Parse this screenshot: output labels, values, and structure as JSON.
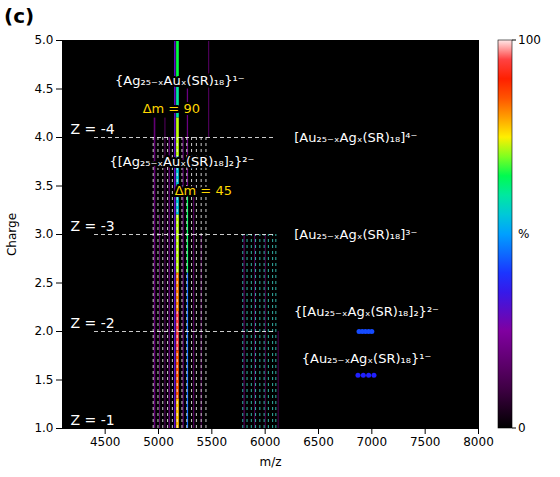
{
  "chart_data": {
    "type": "heatmap",
    "title": "(c)",
    "x_label": "m/z",
    "y_label": "Charge",
    "xlim": [
      4100,
      8000
    ],
    "xticks": [
      4500,
      5000,
      5500,
      6000,
      6500,
      7000,
      7500,
      8000
    ],
    "ylim": [
      1.0,
      5.0
    ],
    "yticks": [
      {
        "value": 1.0,
        "label": "1.0"
      },
      {
        "value": 1.5,
        "label": "1.5"
      },
      {
        "value": 2.0,
        "label": "2.0"
      },
      {
        "value": 2.5,
        "label": "2.5"
      },
      {
        "value": 3.0,
        "label": "3.0"
      },
      {
        "value": 3.5,
        "label": "3.5"
      },
      {
        "value": 4.0,
        "label": "4.0"
      },
      {
        "value": 4.5,
        "label": "4.5"
      },
      {
        "value": 5.0,
        "label": "5.0"
      }
    ],
    "colorbar": {
      "label": "%",
      "range": [
        0,
        100
      ],
      "ticks": [
        0,
        100
      ]
    },
    "cells": [
      {
        "mz": [
          5170,
          5195
        ],
        "charge": [
          4.6,
          5.0
        ],
        "value": 66
      },
      {
        "mz": [
          5170,
          5195
        ],
        "charge": [
          4.2,
          4.6
        ],
        "value": 60
      },
      {
        "mz": [
          5170,
          5195
        ],
        "charge": [
          3.8,
          4.2
        ],
        "value": 72
      },
      {
        "mz": [
          5170,
          5195
        ],
        "charge": [
          3.2,
          3.8
        ],
        "value": 55
      },
      {
        "mz": [
          5170,
          5195
        ],
        "charge": [
          2.6,
          3.2
        ],
        "value": 72
      },
      {
        "mz": [
          5170,
          5195
        ],
        "charge": [
          2.2,
          2.6
        ],
        "value": 82
      },
      {
        "mz": [
          5170,
          5195
        ],
        "charge": [
          1.8,
          2.2
        ],
        "value": 95
      },
      {
        "mz": [
          5170,
          5195
        ],
        "charge": [
          1.3,
          1.8
        ],
        "value": 85
      },
      {
        "mz": [
          5170,
          5195
        ],
        "charge": [
          1.0,
          1.3
        ],
        "value": 78
      },
      {
        "mz": [
          5150,
          5165
        ],
        "charge": [
          1.0,
          5.0
        ],
        "value": 30
      },
      {
        "mz": [
          5270,
          5282
        ],
        "charge": [
          2.6,
          3.4
        ],
        "value": 64
      },
      {
        "mz": [
          5270,
          5282
        ],
        "charge": [
          1.0,
          2.6
        ],
        "value": 45
      },
      {
        "mz": [
          5270,
          5282
        ],
        "charge": [
          3.4,
          4.5
        ],
        "value": 20
      },
      {
        "mz": [
          4960,
          4975
        ],
        "charge": [
          1.0,
          4.2
        ],
        "value": 18
      },
      {
        "mz": [
          5010,
          5020
        ],
        "charge": [
          1.0,
          3.2
        ],
        "value": 15
      },
      {
        "mz": [
          5060,
          5070
        ],
        "charge": [
          1.0,
          4.2
        ],
        "value": 14
      },
      {
        "mz": [
          5100,
          5110
        ],
        "charge": [
          1.0,
          4.0
        ],
        "value": 22
      },
      {
        "mz": [
          5230,
          5240
        ],
        "charge": [
          1.0,
          4.0
        ],
        "value": 20
      },
      {
        "mz": [
          5330,
          5340
        ],
        "charge": [
          1.0,
          3.5
        ],
        "value": 16
      },
      {
        "mz": [
          5400,
          5410
        ],
        "charge": [
          1.0,
          3.0
        ],
        "value": 12
      },
      {
        "mz": [
          5470,
          5480
        ],
        "charge": [
          4.0,
          5.0
        ],
        "value": 15
      },
      {
        "mz": [
          5800,
          5815
        ],
        "charge": [
          1.0,
          3.0
        ],
        "value": 10
      },
      {
        "mz": [
          5900,
          5912
        ],
        "charge": [
          1.0,
          3.0
        ],
        "value": 10
      },
      {
        "mz": [
          6000,
          6012
        ],
        "charge": [
          1.0,
          3.0
        ],
        "value": 10
      },
      {
        "mz": [
          6120,
          6135
        ],
        "charge": [
          1.0,
          2.0
        ],
        "value": 8
      }
    ],
    "points": [
      {
        "mz": 6880,
        "charge": 2.0,
        "value": 42
      },
      {
        "mz": 6910,
        "charge": 2.0,
        "value": 42
      },
      {
        "mz": 6940,
        "charge": 2.0,
        "value": 42
      },
      {
        "mz": 6970,
        "charge": 2.0,
        "value": 42
      },
      {
        "mz": 7000,
        "charge": 2.0,
        "value": 42
      },
      {
        "mz": 6870,
        "charge": 1.55,
        "value": 38
      },
      {
        "mz": 6920,
        "charge": 1.55,
        "value": 38
      },
      {
        "mz": 6970,
        "charge": 1.55,
        "value": 38
      },
      {
        "mz": 7020,
        "charge": 1.55,
        "value": 38
      }
    ],
    "guides": [
      {
        "color": "#ffffff",
        "charge_range": [
          1.0,
          4.0
        ],
        "mz": [
          4950,
          4995,
          5040,
          5085,
          5130,
          5175,
          5220,
          5265,
          5310,
          5355,
          5400,
          5445
        ]
      },
      {
        "color": "#40e0d0",
        "charge_range": [
          1.0,
          3.0
        ],
        "mz": [
          5790,
          5830,
          5870,
          5910,
          5950,
          5990,
          6030,
          6070,
          6100
        ]
      }
    ],
    "charge_levels": [
      {
        "label": "Z = -4",
        "charge": 4.0,
        "mz_range": [
          4400,
          6100
        ]
      },
      {
        "label": "Z = -3",
        "charge": 3.0,
        "mz_range": [
          4400,
          6100
        ]
      },
      {
        "label": "Z = -2",
        "charge": 2.0,
        "mz_range": [
          4400,
          6100
        ]
      },
      {
        "label": "Z = -1",
        "charge": 1.0
      }
    ],
    "annotations": [
      {
        "text": "{Ag₂₅₋ₓAuₓ(SR)₁₈}¹⁻",
        "mz": 5200,
        "charge": 4.58,
        "color": "#ffffff"
      },
      {
        "text": "Δm = 90",
        "mz": 5120,
        "charge": 4.3,
        "color": "#ffd700"
      },
      {
        "text": "{[Ag₂₅₋ₓAuₓ(SR)₁₈]₂}²⁻",
        "mz": 5220,
        "charge": 3.75,
        "color": "#ffffff"
      },
      {
        "text": "Δm = 45",
        "mz": 5420,
        "charge": 3.45,
        "color": "#ffd700"
      },
      {
        "text": "[Au₂₅₋ₓAgₓ(SR)₁₈]⁴⁻",
        "mz": 6850,
        "charge": 4.0,
        "color": "#ffffff"
      },
      {
        "text": "[Au₂₅₋ₓAgₓ(SR)₁₈]³⁻",
        "mz": 6850,
        "charge": 3.0,
        "color": "#ffffff"
      },
      {
        "text": "{[Au₂₅₋ₓAgₓ(SR)₁₈]₂}²⁻",
        "mz": 6950,
        "charge": 2.2,
        "color": "#ffffff"
      },
      {
        "text": "{Au₂₅₋ₓAgₓ(SR)₁₈}¹⁻",
        "mz": 6950,
        "charge": 1.72,
        "color": "#ffffff"
      }
    ]
  }
}
